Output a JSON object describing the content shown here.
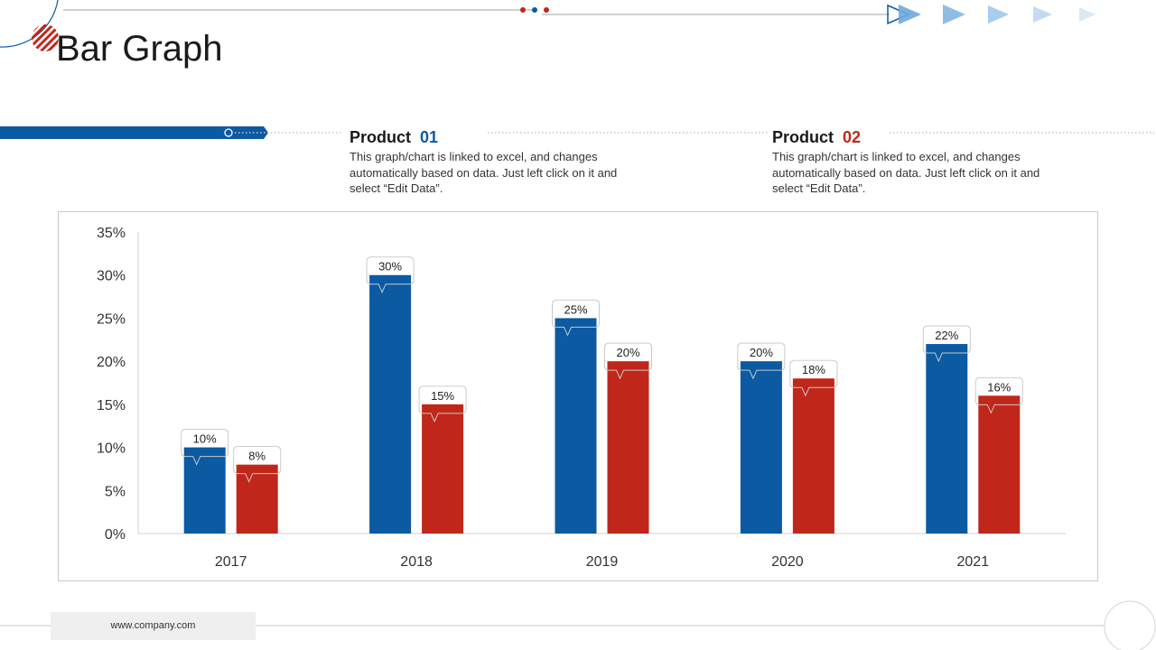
{
  "slide": {
    "title": "Bar Graph",
    "footer_url": "www.company.com"
  },
  "legend": {
    "product1": {
      "label": "Product",
      "number": "01",
      "color": "#0b5aa2",
      "description": "This graph/chart is linked to excel, and changes automatically based on data. Just left click on it and select “Edit Data”."
    },
    "product2": {
      "label": "Product",
      "number": "02",
      "color": "#c0271a",
      "description": "This graph/chart is linked to excel, and changes automatically based on data. Just left click on it and select “Edit Data”."
    }
  },
  "chart_data": {
    "type": "bar",
    "title": "",
    "xlabel": "",
    "ylabel": "",
    "categories": [
      "2017",
      "2018",
      "2019",
      "2020",
      "2021"
    ],
    "ylim": [
      0,
      35
    ],
    "yticks": [
      0,
      5,
      10,
      15,
      20,
      25,
      30,
      35
    ],
    "ytick_labels": [
      "0%",
      "5%",
      "10%",
      "15%",
      "20%",
      "25%",
      "30%",
      "35%"
    ],
    "grid": false,
    "series": [
      {
        "name": "Product 01",
        "color": "#0b5aa2",
        "values": [
          10,
          30,
          25,
          20,
          22
        ],
        "labels": [
          "10%",
          "30%",
          "25%",
          "20%",
          "22%"
        ]
      },
      {
        "name": "Product 02",
        "color": "#c0271a",
        "values": [
          8,
          15,
          20,
          18,
          16
        ],
        "labels": [
          "8%",
          "15%",
          "20%",
          "18%",
          "16%"
        ]
      }
    ]
  }
}
